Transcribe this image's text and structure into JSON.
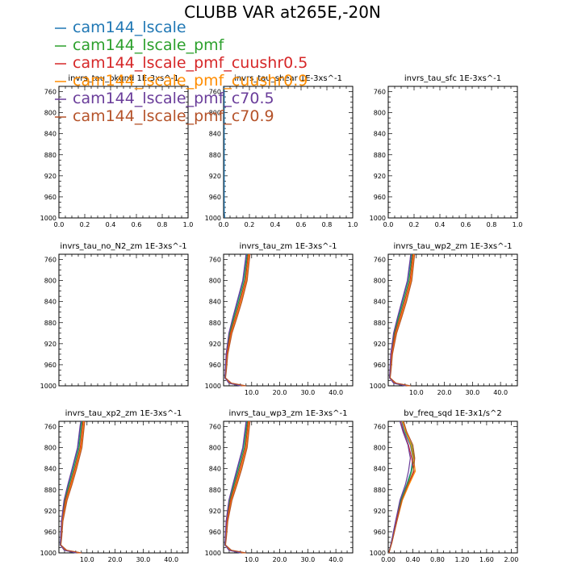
{
  "figure": {
    "title": "CLUBB VAR at265E,-20N"
  },
  "legend": [
    {
      "label": "cam144_lscale",
      "color": "#1f77b4"
    },
    {
      "label": "cam144_lscale_pmf",
      "color": "#2ca02c"
    },
    {
      "label": "cam144_lscale_pmf_cuushr0.5",
      "color": "#d62728"
    },
    {
      "label": "cam144_lscale_pmf_cuushr0.9",
      "color": "#ff8c00"
    },
    {
      "label": "cam144_lscale_pmf_c70.5",
      "color": "#6a3d9a"
    },
    {
      "label": "cam144_lscale_pmf_c70.9",
      "color": "#b5532a"
    }
  ],
  "chart_data": [
    {
      "type": "line",
      "title": "invrs_tau_bkgnd  1E-3xs^-1",
      "xlim": [
        0,
        1
      ],
      "ylim": [
        1000,
        750
      ],
      "xticks": [
        "0.0",
        "0.2",
        "0.4",
        "0.6",
        "0.8",
        "1.0"
      ],
      "yticks": [
        "760",
        "800",
        "840",
        "880",
        "920",
        "960",
        "1000"
      ],
      "series": [],
      "grid": false
    },
    {
      "type": "line",
      "title": "invrs_tau_shear  1E-3xs^-1",
      "xlim": [
        0,
        1
      ],
      "ylim": [
        1000,
        750
      ],
      "xticks": [
        "0.0",
        "0.2",
        "0.4",
        "0.6",
        "0.8",
        "1.0"
      ],
      "yticks": [
        "760",
        "800",
        "840",
        "880",
        "920",
        "960",
        "1000"
      ],
      "series": [
        {
          "x": [
            0.005,
            0.005,
            0.005,
            0.005,
            0.005,
            0.005,
            0.005,
            0.005,
            0.01
          ],
          "y": [
            750,
            760,
            800,
            840,
            880,
            920,
            960,
            990,
            1000
          ]
        }
      ],
      "grid": false
    },
    {
      "type": "line",
      "title": "invrs_tau_sfc  1E-3xs^-1",
      "xlim": [
        0,
        1
      ],
      "ylim": [
        1000,
        750
      ],
      "xticks": [
        "0.0",
        "0.2",
        "0.4",
        "0.6",
        "0.8",
        "1.0"
      ],
      "yticks": [
        "760",
        "800",
        "840",
        "880",
        "920",
        "960",
        "1000"
      ],
      "series": [],
      "grid": false
    },
    {
      "type": "line",
      "title": "invrs_tau_no_N2_zm  1E-3xs^-1",
      "xlim": [
        0,
        1
      ],
      "ylim": [
        1000,
        750
      ],
      "xticks": [],
      "yticks": [
        "760",
        "800",
        "840",
        "880",
        "920",
        "960",
        "1000"
      ],
      "series": [],
      "grid": false
    },
    {
      "type": "line",
      "title": "invrs_tau_zm  1E-3xs^-1",
      "xlim": [
        0,
        46
      ],
      "ylim": [
        1000,
        750
      ],
      "xticks": [
        "10.0",
        "20.0",
        "30.0",
        "40.0"
      ],
      "yticks": [
        "760",
        "800",
        "840",
        "880",
        "920",
        "960",
        "1000"
      ],
      "series": [
        {
          "x": [
            8.2,
            8.0,
            7.0,
            5.0,
            3.5,
            2.0,
            1.0,
            0.7,
            0.5,
            2.0,
            6.0
          ],
          "y": [
            750,
            760,
            800,
            840,
            870,
            900,
            940,
            970,
            985,
            995,
            1000
          ]
        },
        {
          "x": [
            8.5,
            8.3,
            7.4,
            5.4,
            3.8,
            2.2,
            1.1,
            0.7,
            0.5,
            2.2,
            6.5
          ],
          "y": [
            750,
            760,
            800,
            840,
            870,
            900,
            940,
            970,
            985,
            995,
            1000
          ]
        },
        {
          "x": [
            8.8,
            8.6,
            7.8,
            5.8,
            4.2,
            2.5,
            1.2,
            0.8,
            0.6,
            2.4,
            7.0
          ],
          "y": [
            750,
            760,
            800,
            840,
            870,
            900,
            940,
            970,
            985,
            995,
            1000
          ]
        },
        {
          "x": [
            9.1,
            8.9,
            8.1,
            6.2,
            4.5,
            2.8,
            1.4,
            0.9,
            0.6,
            2.6,
            7.5
          ],
          "y": [
            750,
            760,
            800,
            840,
            870,
            900,
            940,
            970,
            985,
            995,
            1000
          ]
        },
        {
          "x": [
            8.0,
            7.8,
            6.8,
            4.8,
            3.3,
            1.9,
            0.9,
            0.6,
            0.5,
            1.9,
            6.2
          ],
          "y": [
            750,
            760,
            800,
            840,
            870,
            900,
            940,
            970,
            985,
            995,
            1000
          ]
        },
        {
          "x": [
            9.4,
            9.2,
            8.4,
            6.5,
            4.8,
            3.0,
            1.5,
            1.0,
            0.7,
            2.8,
            8.0
          ],
          "y": [
            750,
            760,
            800,
            840,
            870,
            900,
            940,
            970,
            985,
            995,
            1000
          ]
        }
      ],
      "grid": false
    },
    {
      "type": "line",
      "title": "invrs_tau_wp2_zm  1E-3xs^-1",
      "xlim": [
        0,
        46
      ],
      "ylim": [
        1000,
        750
      ],
      "xticks": [
        "10.0",
        "20.0",
        "30.0",
        "40.0"
      ],
      "yticks": [
        "760",
        "800",
        "840",
        "880",
        "920",
        "960",
        "1000"
      ],
      "series": [
        {
          "x": [
            8.2,
            8.0,
            7.0,
            5.0,
            3.5,
            2.0,
            1.0,
            0.7,
            0.5,
            2.0,
            6.0
          ],
          "y": [
            750,
            760,
            800,
            840,
            870,
            900,
            940,
            970,
            985,
            995,
            1000
          ]
        },
        {
          "x": [
            8.5,
            8.3,
            7.4,
            5.4,
            3.8,
            2.2,
            1.1,
            0.7,
            0.5,
            2.2,
            6.5
          ],
          "y": [
            750,
            760,
            800,
            840,
            870,
            900,
            940,
            970,
            985,
            995,
            1000
          ]
        },
        {
          "x": [
            8.8,
            8.6,
            7.8,
            5.8,
            4.2,
            2.5,
            1.2,
            0.8,
            0.6,
            2.4,
            7.0
          ],
          "y": [
            750,
            760,
            800,
            840,
            870,
            900,
            940,
            970,
            985,
            995,
            1000
          ]
        },
        {
          "x": [
            9.1,
            8.9,
            8.1,
            6.2,
            4.5,
            2.8,
            1.4,
            0.9,
            0.6,
            2.6,
            7.5
          ],
          "y": [
            750,
            760,
            800,
            840,
            870,
            900,
            940,
            970,
            985,
            995,
            1000
          ]
        },
        {
          "x": [
            8.0,
            7.8,
            6.8,
            4.8,
            3.3,
            1.9,
            0.9,
            0.6,
            0.5,
            1.9,
            6.2
          ],
          "y": [
            750,
            760,
            800,
            840,
            870,
            900,
            940,
            970,
            985,
            995,
            1000
          ]
        },
        {
          "x": [
            9.4,
            9.2,
            8.4,
            6.5,
            4.8,
            3.0,
            1.5,
            1.0,
            0.7,
            2.8,
            8.0
          ],
          "y": [
            750,
            760,
            800,
            840,
            870,
            900,
            940,
            970,
            985,
            995,
            1000
          ]
        }
      ],
      "grid": false
    },
    {
      "type": "line",
      "title": "invrs_tau_xp2_zm  1E-3xs^-1",
      "xlim": [
        0,
        46
      ],
      "ylim": [
        1000,
        750
      ],
      "xticks": [
        "10.0",
        "20.0",
        "30.0",
        "40.0"
      ],
      "yticks": [
        "760",
        "800",
        "840",
        "880",
        "920",
        "960",
        "1000"
      ],
      "series": [
        {
          "x": [
            8.0,
            7.7,
            6.8,
            4.9,
            3.4,
            1.9,
            1.0,
            0.6,
            0.5,
            2.0,
            6.0
          ],
          "y": [
            750,
            760,
            800,
            840,
            870,
            900,
            940,
            970,
            985,
            995,
            1000
          ]
        },
        {
          "x": [
            8.3,
            8.0,
            7.2,
            5.3,
            3.7,
            2.1,
            1.1,
            0.7,
            0.5,
            2.2,
            6.5
          ],
          "y": [
            750,
            760,
            800,
            840,
            870,
            900,
            940,
            970,
            985,
            995,
            1000
          ]
        },
        {
          "x": [
            8.6,
            8.4,
            7.6,
            5.7,
            4.1,
            2.4,
            1.2,
            0.8,
            0.6,
            2.4,
            7.0
          ],
          "y": [
            750,
            760,
            800,
            840,
            870,
            900,
            940,
            970,
            985,
            995,
            1000
          ]
        },
        {
          "x": [
            8.9,
            8.7,
            7.9,
            6.0,
            4.4,
            2.7,
            1.3,
            0.9,
            0.6,
            2.6,
            7.5
          ],
          "y": [
            750,
            760,
            800,
            840,
            870,
            900,
            940,
            970,
            985,
            995,
            1000
          ]
        },
        {
          "x": [
            7.8,
            7.5,
            6.6,
            4.7,
            3.2,
            1.8,
            0.9,
            0.6,
            0.5,
            1.9,
            6.2
          ],
          "y": [
            750,
            760,
            800,
            840,
            870,
            900,
            940,
            970,
            985,
            995,
            1000
          ]
        },
        {
          "x": [
            9.2,
            9.0,
            8.2,
            6.3,
            4.7,
            2.9,
            1.4,
            1.0,
            0.7,
            2.8,
            8.0
          ],
          "y": [
            750,
            760,
            800,
            840,
            870,
            900,
            940,
            970,
            985,
            995,
            1000
          ]
        }
      ],
      "grid": false
    },
    {
      "type": "line",
      "title": "invrs_tau_wp3_zm  1E-3xs^-1",
      "xlim": [
        0,
        46
      ],
      "ylim": [
        1000,
        750
      ],
      "xticks": [
        "10.0",
        "20.0",
        "30.0",
        "40.0"
      ],
      "yticks": [
        "760",
        "800",
        "840",
        "880",
        "920",
        "960",
        "1000"
      ],
      "series": [
        {
          "x": [
            8.2,
            8.0,
            7.0,
            5.0,
            3.5,
            2.0,
            1.0,
            0.7,
            0.5,
            2.0,
            6.0
          ],
          "y": [
            750,
            760,
            800,
            840,
            870,
            900,
            940,
            970,
            985,
            995,
            1000
          ]
        },
        {
          "x": [
            8.5,
            8.3,
            7.4,
            5.4,
            3.8,
            2.2,
            1.1,
            0.7,
            0.5,
            2.2,
            6.5
          ],
          "y": [
            750,
            760,
            800,
            840,
            870,
            900,
            940,
            970,
            985,
            995,
            1000
          ]
        },
        {
          "x": [
            8.8,
            8.6,
            7.8,
            5.8,
            4.2,
            2.5,
            1.2,
            0.8,
            0.6,
            2.4,
            7.0
          ],
          "y": [
            750,
            760,
            800,
            840,
            870,
            900,
            940,
            970,
            985,
            995,
            1000
          ]
        },
        {
          "x": [
            9.1,
            8.9,
            8.1,
            6.2,
            4.5,
            2.8,
            1.4,
            0.9,
            0.6,
            2.6,
            7.5
          ],
          "y": [
            750,
            760,
            800,
            840,
            870,
            900,
            940,
            970,
            985,
            995,
            1000
          ]
        },
        {
          "x": [
            8.0,
            7.8,
            6.8,
            4.8,
            3.3,
            1.9,
            0.9,
            0.6,
            0.5,
            1.9,
            6.2
          ],
          "y": [
            750,
            760,
            800,
            840,
            870,
            900,
            940,
            970,
            985,
            995,
            1000
          ]
        },
        {
          "x": [
            9.4,
            9.2,
            8.4,
            6.5,
            4.8,
            3.0,
            1.5,
            1.0,
            0.7,
            2.8,
            8.0
          ],
          "y": [
            750,
            760,
            800,
            840,
            870,
            900,
            940,
            970,
            985,
            995,
            1000
          ]
        }
      ],
      "grid": false
    },
    {
      "type": "line",
      "title": "bv_freq_sqd  1E-3x1/s^2",
      "xlim": [
        0,
        2.1
      ],
      "ylim": [
        1000,
        750
      ],
      "xticks": [
        "0.00",
        "0.40",
        "0.80",
        "1.20",
        "1.60",
        "2.00"
      ],
      "yticks": [
        "760",
        "800",
        "840",
        "880",
        "920",
        "960",
        "1000"
      ],
      "series": [
        {
          "x": [
            0.22,
            0.26,
            0.36,
            0.4,
            0.37,
            0.3,
            0.2,
            0.12,
            0.05,
            0.01
          ],
          "y": [
            750,
            770,
            795,
            820,
            845,
            870,
            900,
            940,
            980,
            1000
          ]
        },
        {
          "x": [
            0.24,
            0.28,
            0.38,
            0.42,
            0.38,
            0.31,
            0.21,
            0.13,
            0.05,
            0.01
          ],
          "y": [
            750,
            770,
            795,
            820,
            845,
            870,
            900,
            940,
            980,
            1000
          ]
        },
        {
          "x": [
            0.2,
            0.25,
            0.33,
            0.38,
            0.42,
            0.33,
            0.22,
            0.13,
            0.06,
            0.01
          ],
          "y": [
            750,
            770,
            795,
            820,
            845,
            870,
            900,
            940,
            980,
            1000
          ]
        },
        {
          "x": [
            0.23,
            0.29,
            0.37,
            0.41,
            0.44,
            0.34,
            0.23,
            0.14,
            0.06,
            0.01
          ],
          "y": [
            750,
            770,
            795,
            820,
            845,
            870,
            900,
            940,
            980,
            1000
          ]
        },
        {
          "x": [
            0.19,
            0.24,
            0.32,
            0.36,
            0.33,
            0.28,
            0.19,
            0.12,
            0.05,
            0.01
          ],
          "y": [
            750,
            770,
            795,
            820,
            845,
            870,
            900,
            940,
            980,
            1000
          ]
        },
        {
          "x": [
            0.25,
            0.3,
            0.4,
            0.43,
            0.41,
            0.32,
            0.22,
            0.14,
            0.06,
            0.01
          ],
          "y": [
            750,
            770,
            795,
            820,
            845,
            870,
            900,
            940,
            980,
            1000
          ]
        }
      ],
      "grid": false
    }
  ]
}
